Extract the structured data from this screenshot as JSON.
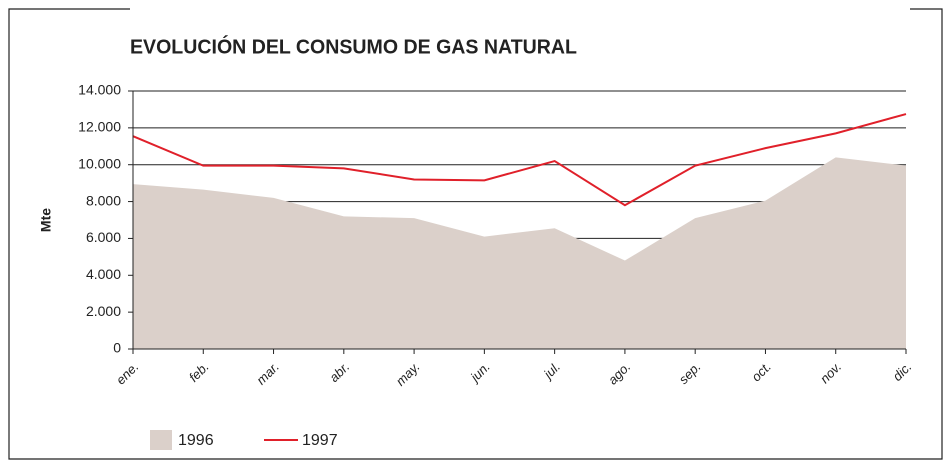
{
  "chart_data": {
    "type": "line",
    "title": "EVOLUCIÓN DEL CONSUMO DE GAS NATURAL",
    "y_label": "Mte",
    "categories": [
      "ene.",
      "feb.",
      "mar.",
      "abr.",
      "may.",
      "jun.",
      "jul.",
      "ago.",
      "sep.",
      "oct.",
      "nov.",
      "dic."
    ],
    "series": [
      {
        "name": "1996",
        "style": "area",
        "color": "#dbd0ca",
        "values": [
          8950,
          8650,
          8200,
          7200,
          7100,
          6100,
          6550,
          4800,
          7100,
          8050,
          10400,
          9950
        ]
      },
      {
        "name": "1997",
        "style": "line",
        "color": "#e0202a",
        "values": [
          11550,
          9950,
          9950,
          9800,
          9200,
          9150,
          10200,
          7800,
          9950,
          10900,
          11700,
          12750
        ]
      }
    ],
    "ylim": [
      0,
      14000
    ],
    "yticks": [
      {
        "value": 0,
        "label": "0"
      },
      {
        "value": 2000,
        "label": "2.000"
      },
      {
        "value": 4000,
        "label": "4.000"
      },
      {
        "value": 6000,
        "label": "6.000"
      },
      {
        "value": 8000,
        "label": "8.000"
      },
      {
        "value": 10000,
        "label": "10.000"
      },
      {
        "value": 12000,
        "label": "12.000"
      },
      {
        "value": 14000,
        "label": "14.000"
      }
    ],
    "grid": true
  }
}
